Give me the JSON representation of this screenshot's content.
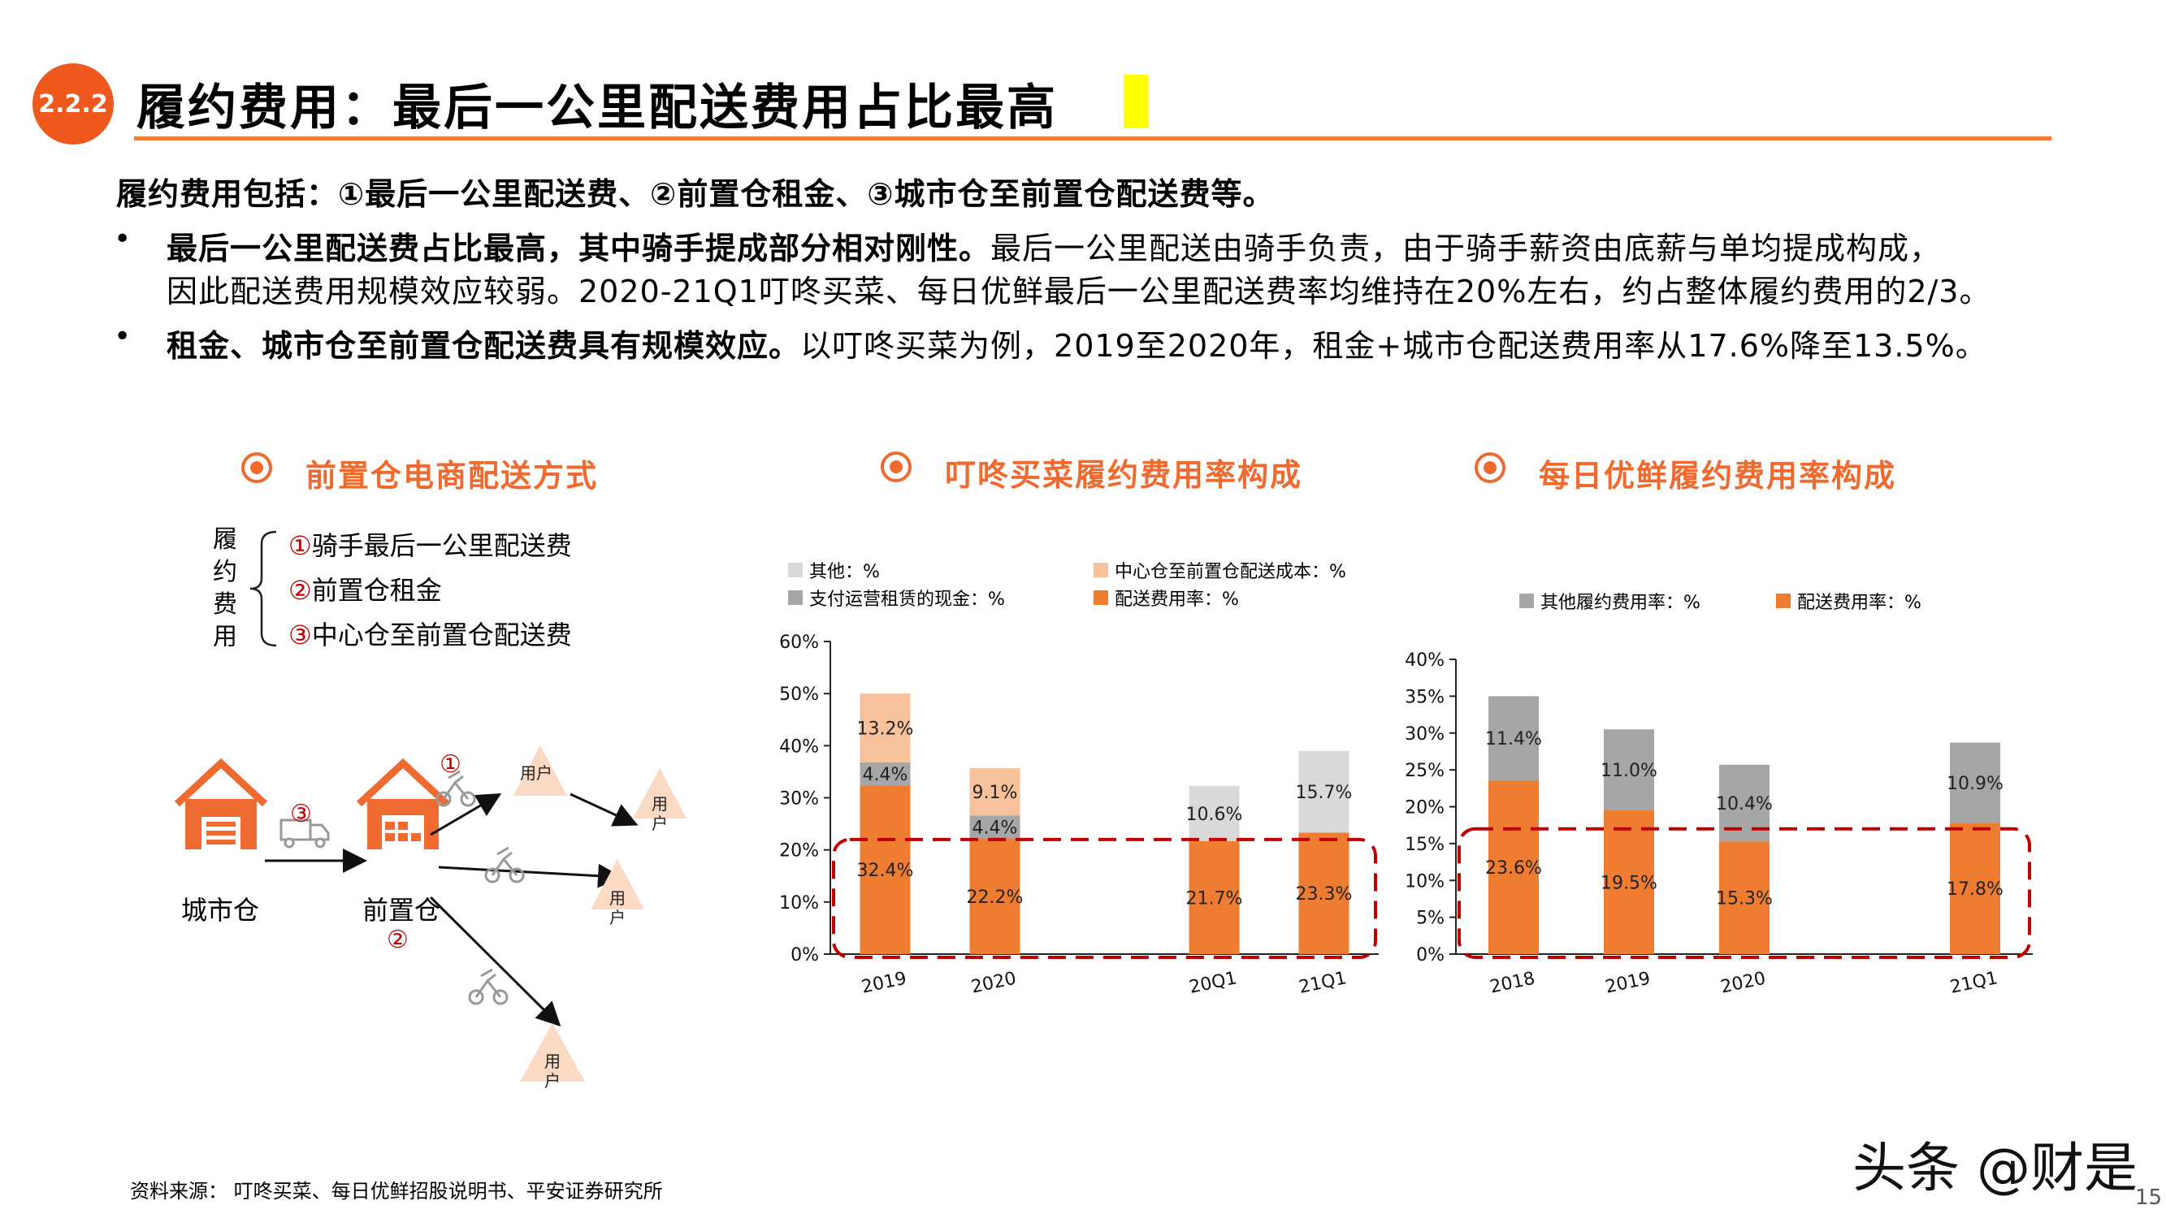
{
  "header": {
    "section_number": "2.2.2",
    "title": "履约费用：最后一公里配送费用占比最高"
  },
  "body": {
    "intro": "履约费用包括：①最后一公里配送费、②前置仓租金、③城市仓至前置仓配送费等。",
    "bullet_symbol": "•",
    "bullets": [
      {
        "bold": "最后一公里配送费占比最高，其中骑手提成部分相对刚性。",
        "text_line1": "最后一公里配送由骑手负责，由于骑手薪资由底薪与单均提成构成，",
        "text_line2": "因此配送费用规模效应较弱。2020-21Q1叮咚买菜、每日优鲜最后一公里配送费率均维持在20%左右，约占整体履约费用的2/3。"
      },
      {
        "bold": "租金、城市仓至前置仓配送费具有规模效应。",
        "text": "以叮咚买菜为例，2019至2020年，租金+城市仓配送费用率从17.6%降至13.5%。"
      }
    ]
  },
  "sections": {
    "diagram_title": "前置仓电商配送方式",
    "chart1_title": "叮咚买菜履约费用率构成",
    "chart2_title": "每日优鲜履约费用率构成"
  },
  "diagram": {
    "side_label": [
      "履",
      "约",
      "费",
      "用"
    ],
    "items": [
      {
        "num": "①",
        "label": "骑手最后一公里配送费"
      },
      {
        "num": "②",
        "label": "前置仓租金"
      },
      {
        "num": "③",
        "label": "中心仓至前置仓配送费"
      }
    ],
    "city_warehouse": "城市仓",
    "front_warehouse": "前置仓",
    "user_label": "用户",
    "num1": "①",
    "num2": "②",
    "num3": "③"
  },
  "colors": {
    "accent": "#f0591e",
    "orange": "#ef7d31",
    "light_orange": "#f7c19b",
    "gray": "#a6a6a6",
    "light_gray": "#d9d9d9",
    "user_triangle": "#fbd9c3",
    "highlight_box": "#c00000"
  },
  "chart_data": [
    {
      "type": "bar",
      "stacked": true,
      "title": "叮咚买菜履约费用率构成",
      "categories": [
        "2019",
        "2020",
        "",
        "20Q1",
        "21Q1"
      ],
      "ylim": [
        0,
        60
      ],
      "yticks": [
        "0%",
        "10%",
        "20%",
        "30%",
        "40%",
        "50%",
        "60%"
      ],
      "legend": [
        "其他：%",
        "中心仓至前置仓配送成本：%",
        "支付运营租赁的现金：%",
        "配送费用率：%"
      ],
      "series": [
        {
          "name": "配送费用率：%",
          "color": "#ef7d31",
          "values": [
            32.4,
            22.2,
            null,
            21.7,
            23.3
          ],
          "labels": [
            "32.4%",
            "22.2%",
            "",
            "21.7%",
            "23.3%"
          ]
        },
        {
          "name": "支付运营租赁的现金：%",
          "color": "#a6a6a6",
          "values": [
            4.4,
            4.4,
            null,
            0,
            0
          ],
          "labels": [
            "4.4%",
            "4.4%",
            "",
            "",
            ""
          ]
        },
        {
          "name": "中心仓至前置仓配送成本：%",
          "color": "#f7c19b",
          "values": [
            13.2,
            9.1,
            null,
            0,
            0
          ],
          "labels": [
            "13.2%",
            "9.1%",
            "",
            "",
            ""
          ]
        },
        {
          "name": "其他：%",
          "color": "#d9d9d9",
          "values": [
            0,
            0,
            null,
            10.6,
            15.7
          ],
          "labels": [
            "",
            "",
            "",
            "10.6%",
            "15.7%"
          ]
        }
      ],
      "highlight": {
        "from": 0,
        "to": 22
      }
    },
    {
      "type": "bar",
      "stacked": true,
      "title": "每日优鲜履约费用率构成",
      "categories": [
        "2018",
        "2019",
        "2020",
        "",
        "21Q1"
      ],
      "ylim": [
        0,
        40
      ],
      "yticks": [
        "0%",
        "5%",
        "10%",
        "15%",
        "20%",
        "25%",
        "30%",
        "35%",
        "40%"
      ],
      "legend": [
        "其他履约费用率：%",
        "配送费用率：%"
      ],
      "series": [
        {
          "name": "配送费用率：%",
          "color": "#ef7d31",
          "values": [
            23.6,
            19.5,
            15.3,
            null,
            17.8
          ],
          "labels": [
            "23.6%",
            "19.5%",
            "15.3%",
            "",
            "17.8%"
          ]
        },
        {
          "name": "其他履约费用率：%",
          "color": "#a6a6a6",
          "values": [
            11.4,
            11.0,
            10.4,
            null,
            10.9
          ],
          "labels": [
            "11.4%",
            "11.0%",
            "10.4%",
            "",
            "10.9%"
          ]
        }
      ],
      "highlight": {
        "from": 0,
        "to": 17
      }
    }
  ],
  "footer": {
    "source": "资料来源：  叮咚买菜、每日优鲜招股说明书、平安证券研究所",
    "watermark": "头条 @财是",
    "page_number": "15"
  }
}
